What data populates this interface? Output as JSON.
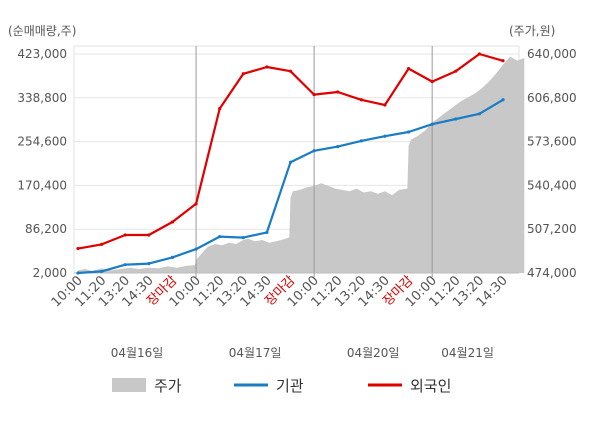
{
  "chart_data": {
    "type": "line",
    "left_axis_unit": "(순매매량,주)",
    "right_axis_unit": "(주가,원)",
    "left_ylim": [
      2000,
      423000
    ],
    "left_ticks": [
      "2,000",
      "86,200",
      "170,400",
      "254,600",
      "338,800",
      "423,000"
    ],
    "right_ylim": [
      474000,
      640000
    ],
    "right_ticks": [
      "474,000",
      "507,200",
      "540,400",
      "573,600",
      "606,800",
      "640,000"
    ],
    "x_ticks": [
      {
        "label": "10:00",
        "close": false
      },
      {
        "label": "11:20",
        "close": false
      },
      {
        "label": "13:20",
        "close": false
      },
      {
        "label": "14:30",
        "close": false
      },
      {
        "label": "장마감",
        "close": true
      },
      {
        "label": "10:00",
        "close": false
      },
      {
        "label": "11:20",
        "close": false
      },
      {
        "label": "13:20",
        "close": false
      },
      {
        "label": "14:30",
        "close": false
      },
      {
        "label": "장마감",
        "close": true
      },
      {
        "label": "10:00",
        "close": false
      },
      {
        "label": "11:20",
        "close": false
      },
      {
        "label": "13:20",
        "close": false
      },
      {
        "label": "14:30",
        "close": false
      },
      {
        "label": "장마감",
        "close": true
      },
      {
        "label": "10:00",
        "close": false
      },
      {
        "label": "11:20",
        "close": false
      },
      {
        "label": "13:20",
        "close": false
      },
      {
        "label": "14:30",
        "close": false
      }
    ],
    "dates": [
      {
        "label": "04월16일",
        "start_index": 0,
        "end_index": 5
      },
      {
        "label": "04월17일",
        "start_index": 5,
        "end_index": 10
      },
      {
        "label": "04월20일",
        "start_index": 10,
        "end_index": 15
      },
      {
        "label": "04월21일",
        "start_index": 15,
        "end_index": 18
      }
    ],
    "day_divider_indices": [
      5,
      10,
      15
    ],
    "series": [
      {
        "name": "주가",
        "kind": "area",
        "axis": "right",
        "color": "#c8c8c8",
        "x": [
          0,
          0.3,
          0.6,
          1,
          1.4,
          1.8,
          2.2,
          2.6,
          3,
          3.4,
          3.8,
          4.2,
          4.6,
          4.95,
          5,
          5.2,
          5.5,
          5.8,
          6.1,
          6.4,
          6.7,
          7,
          7.2,
          7.5,
          7.8,
          8.1,
          8.4,
          8.7,
          8.95,
          9,
          9.1,
          9.4,
          9.7,
          10,
          10.3,
          10.6,
          10.9,
          11.2,
          11.5,
          11.8,
          12.1,
          12.4,
          12.7,
          13,
          13.3,
          13.6,
          13.95,
          14,
          14.1,
          14.4,
          14.7,
          15,
          15.3,
          15.6,
          15.9,
          16.2,
          16.5,
          16.8,
          17.1,
          17.4,
          17.7,
          18,
          18.3,
          18.6,
          18.9
        ],
        "values": [
          476000,
          477000,
          475500,
          477500,
          476000,
          477000,
          478000,
          477000,
          478000,
          477500,
          479000,
          478000,
          479500,
          480000,
          484000,
          488000,
          494000,
          496000,
          495000,
          497000,
          496000,
          499000,
          500000,
          498000,
          499000,
          497000,
          498000,
          499500,
          501000,
          531000,
          536000,
          537000,
          539000,
          540000,
          542000,
          540000,
          538000,
          537000,
          536000,
          538000,
          535000,
          536000,
          534000,
          536000,
          533000,
          537000,
          538000,
          570000,
          575000,
          578000,
          582000,
          588000,
          592000,
          596000,
          600000,
          604000,
          607000,
          610000,
          614000,
          619000,
          625000,
          632000,
          638000,
          635000,
          637000
        ]
      },
      {
        "name": "기관",
        "kind": "line",
        "axis": "left",
        "color": "#1a7cc5",
        "x": [
          0,
          1,
          2,
          3,
          4,
          5,
          6,
          7,
          8,
          9,
          10,
          11,
          12,
          13,
          14,
          15,
          16,
          17,
          18
        ],
        "values": [
          2000,
          5000,
          18000,
          20000,
          32000,
          48000,
          72000,
          70000,
          80000,
          215000,
          237000,
          245000,
          256000,
          265000,
          273000,
          288000,
          298000,
          308000,
          335000
        ]
      },
      {
        "name": "외국인",
        "kind": "line",
        "axis": "left",
        "color": "#e00000",
        "x": [
          0,
          1,
          2,
          3,
          4,
          5,
          6,
          7,
          8,
          9,
          10,
          11,
          12,
          13,
          14,
          15,
          16,
          17,
          18
        ],
        "values": [
          49000,
          57000,
          75000,
          75000,
          100000,
          135000,
          318000,
          385000,
          398000,
          390000,
          345000,
          350000,
          335000,
          325000,
          395000,
          370000,
          390000,
          423000,
          410000
        ]
      }
    ],
    "legend": [
      {
        "label": "주가",
        "kind": "area",
        "color": "#c8c8c8"
      },
      {
        "label": "기관",
        "kind": "line",
        "color": "#1a7cc5"
      },
      {
        "label": "외국인",
        "kind": "line",
        "color": "#e00000"
      }
    ],
    "legend_position": "bottom",
    "grid": true
  }
}
